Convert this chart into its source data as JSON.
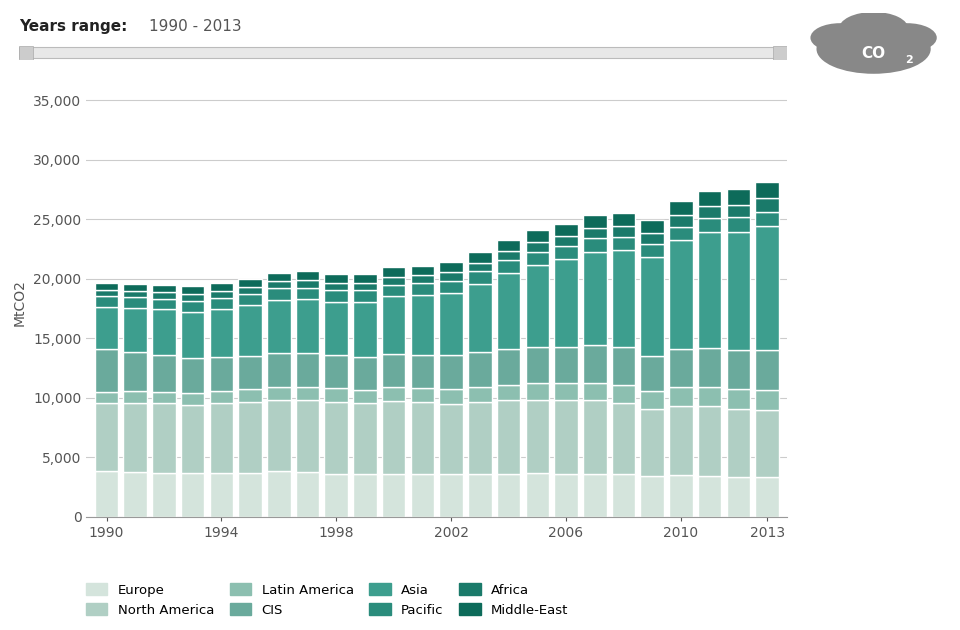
{
  "years": [
    1990,
    1991,
    1992,
    1993,
    1994,
    1995,
    1996,
    1997,
    1998,
    1999,
    2000,
    2001,
    2002,
    2003,
    2004,
    2005,
    2006,
    2007,
    2008,
    2009,
    2010,
    2011,
    2012,
    2013
  ],
  "regions": [
    "Europe",
    "North America",
    "Latin America",
    "CIS",
    "Asia",
    "Pacific",
    "Africa",
    "Middle-East"
  ],
  "colors": [
    "#d4e4dc",
    "#b0cfc4",
    "#8cbfb0",
    "#6aaa9c",
    "#3d9e8e",
    "#2a8c7c",
    "#1a7a6a",
    "#0d6b5a"
  ],
  "data": {
    "Europe": [
      3800,
      3750,
      3700,
      3650,
      3680,
      3700,
      3800,
      3720,
      3620,
      3560,
      3600,
      3560,
      3540,
      3580,
      3620,
      3640,
      3620,
      3620,
      3580,
      3380,
      3480,
      3440,
      3360,
      3310
    ],
    "North America": [
      5750,
      5800,
      5820,
      5770,
      5870,
      5930,
      6030,
      6050,
      6050,
      6000,
      6150,
      6050,
      5950,
      6050,
      6150,
      6200,
      6150,
      6150,
      5950,
      5650,
      5850,
      5850,
      5700,
      5650
    ],
    "Latin America": [
      950,
      980,
      990,
      1000,
      1030,
      1060,
      1080,
      1100,
      1100,
      1120,
      1150,
      1180,
      1200,
      1280,
      1330,
      1380,
      1430,
      1480,
      1520,
      1500,
      1580,
      1620,
      1660,
      1700
    ],
    "CIS": [
      3600,
      3300,
      3100,
      2900,
      2850,
      2800,
      2850,
      2850,
      2780,
      2700,
      2750,
      2800,
      2850,
      2900,
      2950,
      3000,
      3080,
      3150,
      3180,
      3000,
      3150,
      3250,
      3280,
      3300
    ],
    "Asia": [
      3550,
      3700,
      3800,
      3900,
      4050,
      4250,
      4450,
      4550,
      4500,
      4650,
      4850,
      5000,
      5250,
      5750,
      6450,
      6950,
      7350,
      7850,
      8150,
      8250,
      9150,
      9750,
      9950,
      10450
    ],
    "Pacific": [
      880,
      890,
      900,
      910,
      930,
      940,
      960,
      970,
      960,
      970,
      990,
      1000,
      1020,
      1040,
      1080,
      1100,
      1120,
      1130,
      1140,
      1130,
      1160,
      1180,
      1190,
      1210
    ],
    "Africa": [
      530,
      550,
      560,
      570,
      580,
      600,
      620,
      630,
      640,
      650,
      670,
      690,
      710,
      740,
      770,
      810,
      850,
      890,
      930,
      950,
      990,
      1040,
      1080,
      1130
    ],
    "Middle-East": [
      580,
      610,
      620,
      640,
      660,
      680,
      710,
      730,
      740,
      760,
      790,
      820,
      850,
      880,
      930,
      970,
      1020,
      1060,
      1100,
      1080,
      1180,
      1230,
      1280,
      1350
    ]
  },
  "ylabel": "MtCO2",
  "ylim": [
    0,
    36000
  ],
  "yticks": [
    0,
    5000,
    10000,
    15000,
    20000,
    25000,
    30000,
    35000
  ],
  "xtick_years": [
    1990,
    1994,
    1998,
    2002,
    2006,
    2010,
    2013
  ],
  "background_color": "#ffffff",
  "plot_bg_color": "#ffffff",
  "bar_edge_color": "#ffffff",
  "grid_color": "#cccccc",
  "bar_width": 0.82
}
